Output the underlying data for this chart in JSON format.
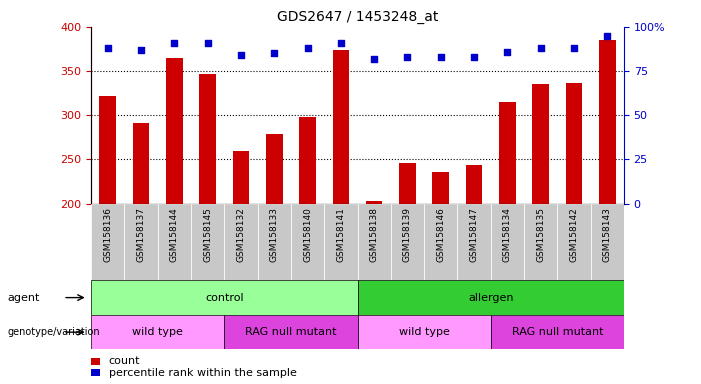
{
  "title": "GDS2647 / 1453248_at",
  "samples": [
    "GSM158136",
    "GSM158137",
    "GSM158144",
    "GSM158145",
    "GSM158132",
    "GSM158133",
    "GSM158140",
    "GSM158141",
    "GSM158138",
    "GSM158139",
    "GSM158146",
    "GSM158147",
    "GSM158134",
    "GSM158135",
    "GSM158142",
    "GSM158143"
  ],
  "counts": [
    322,
    291,
    365,
    347,
    260,
    279,
    298,
    374,
    203,
    246,
    236,
    244,
    315,
    335,
    336,
    385
  ],
  "percentile_ranks": [
    88,
    87,
    91,
    91,
    84,
    85,
    88,
    91,
    82,
    83,
    83,
    83,
    86,
    88,
    88,
    95
  ],
  "ylim_left": [
    200,
    400
  ],
  "ylim_right": [
    0,
    100
  ],
  "yticks_left": [
    200,
    250,
    300,
    350,
    400
  ],
  "yticks_right": [
    0,
    25,
    50,
    75,
    100
  ],
  "bar_color": "#cc0000",
  "dot_color": "#0000cc",
  "bar_width": 0.5,
  "agent_groups": [
    {
      "label": "control",
      "start": 0,
      "end": 8,
      "color": "#99ff99"
    },
    {
      "label": "allergen",
      "start": 8,
      "end": 16,
      "color": "#33cc33"
    }
  ],
  "genotype_groups": [
    {
      "label": "wild type",
      "start": 0,
      "end": 4,
      "color": "#ff99ff"
    },
    {
      "label": "RAG null mutant",
      "start": 4,
      "end": 8,
      "color": "#dd44dd"
    },
    {
      "label": "wild type",
      "start": 8,
      "end": 12,
      "color": "#ff99ff"
    },
    {
      "label": "RAG null mutant",
      "start": 12,
      "end": 16,
      "color": "#dd44dd"
    }
  ],
  "agent_label": "agent",
  "genotype_label": "genotype/variation",
  "legend_count_label": "count",
  "legend_pct_label": "percentile rank within the sample",
  "tick_color_left": "#cc0000",
  "tick_color_right": "#0000cc",
  "background_color": "#ffffff",
  "xticklabel_bg": "#c8c8c8"
}
